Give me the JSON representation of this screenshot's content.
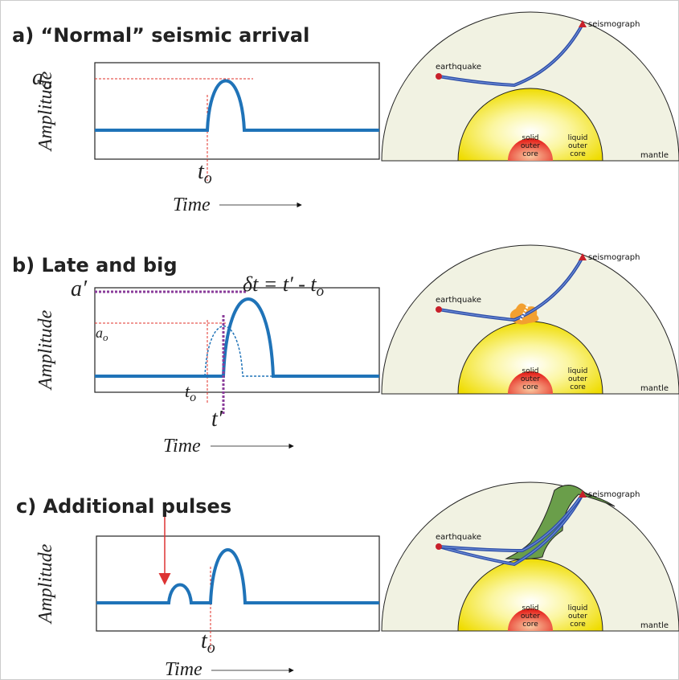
{
  "panels": [
    {
      "title": "a) “Normal” seismic arrival",
      "waveform": {
        "y_axis": "Amplitude",
        "x_axis": "Time",
        "amplitude_label": {
          "main": "a",
          "sub": "o"
        },
        "time_label": {
          "main": "t",
          "sub": "o"
        }
      },
      "earth": {
        "seismograph": "seismograph",
        "earthquake": "earthquake",
        "solid_core": [
          "solid",
          "outer",
          "core"
        ],
        "liquid_core": [
          "liquid",
          "outer",
          "core"
        ],
        "mantle": "mantle"
      }
    },
    {
      "title": "b) Late and big",
      "waveform": {
        "y_axis": "Amplitude",
        "x_axis": "Time",
        "amplitude_label": {
          "main": "a′"
        },
        "reference_amplitude": {
          "main": "a",
          "sub": "o"
        },
        "reference_time": {
          "main": "t",
          "sub": "o"
        },
        "time_label": {
          "main": "t′"
        },
        "delay": {
          "main": "δt = t′ - t",
          "sub": "o"
        }
      },
      "earth": {
        "seismograph": "seismograph",
        "earthquake": "earthquake",
        "solid_core": [
          "solid",
          "outer",
          "core"
        ],
        "liquid_core": [
          "liquid",
          "outer",
          "core"
        ],
        "mantle": "mantle"
      }
    },
    {
      "title": "c) Additional pulses",
      "waveform": {
        "y_axis": "Amplitude",
        "x_axis": "Time",
        "time_label": {
          "main": "t",
          "sub": "o"
        }
      },
      "earth": {
        "seismograph": "seismograph",
        "earthquake": "earthquake",
        "solid_core": [
          "solid",
          "outer",
          "core"
        ],
        "liquid_core": [
          "liquid",
          "outer",
          "core"
        ],
        "mantle": "mantle"
      }
    }
  ]
}
